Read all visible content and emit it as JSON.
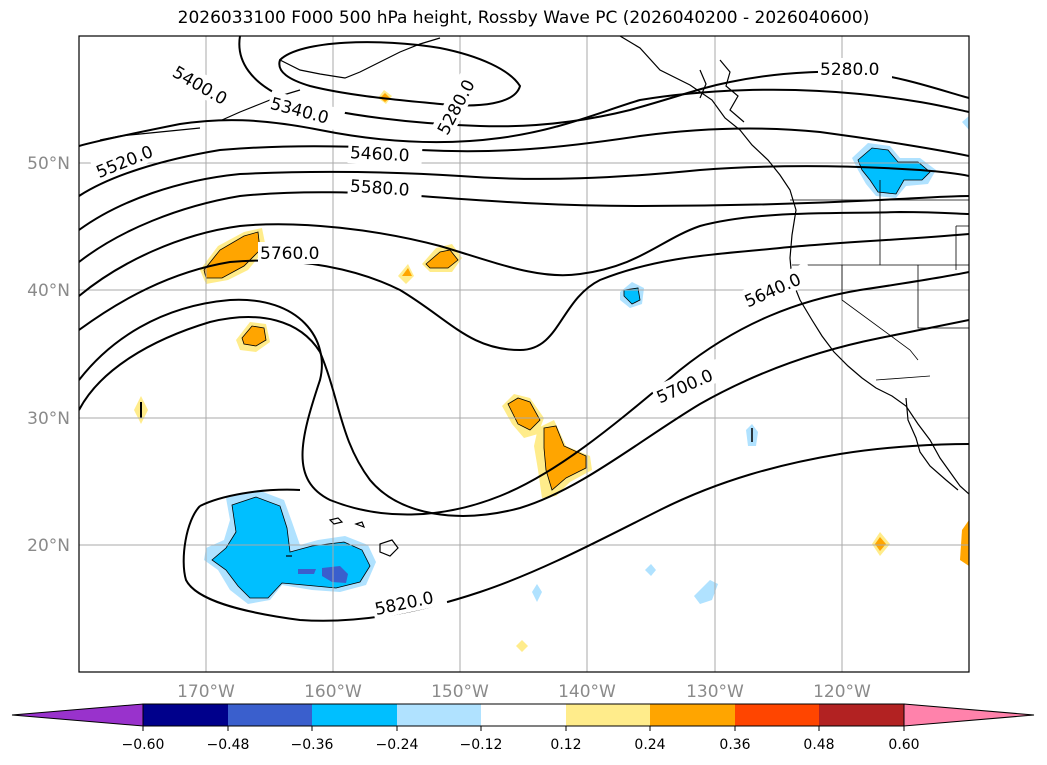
{
  "title": "2026033100 F000 500 hPa height, Rossby Wave PC (2026040200 - 2026040600)",
  "lat_labels": [
    "50°N",
    "40°N",
    "30°N",
    "20°N"
  ],
  "lon_labels": [
    "170°W",
    "160°W",
    "150°W",
    "140°W",
    "130°W",
    "120°W"
  ],
  "contour_labels": [
    "5400.0",
    "5340.0",
    "5280.0",
    "5280.0",
    "5520.0",
    "5460.0",
    "5580.0",
    "5760.0",
    "5640.0",
    "5700.0",
    "5820.0"
  ],
  "colorbar": {
    "ticks": [
      "−0.60",
      "−0.48",
      "−0.36",
      "−0.24",
      "−0.12",
      "0.12",
      "0.24",
      "0.36",
      "0.48",
      "0.60"
    ],
    "colors": [
      "#9932cc",
      "#00008b",
      "#3a5fcd",
      "#00bfff",
      "#b0e2ff",
      "#ffffff",
      "#ffec8b",
      "#ffa500",
      "#ff4500",
      "#b22222",
      "#ff82ab"
    ]
  },
  "colors": {
    "coast": "#000000",
    "grid": "#aaaaaa",
    "contour": "#000000",
    "neg_light": "#b0e2ff",
    "neg_mid": "#00bfff",
    "neg_strong": "#3a5fcd",
    "pos_light": "#ffec8b",
    "pos_mid": "#ffa500"
  }
}
